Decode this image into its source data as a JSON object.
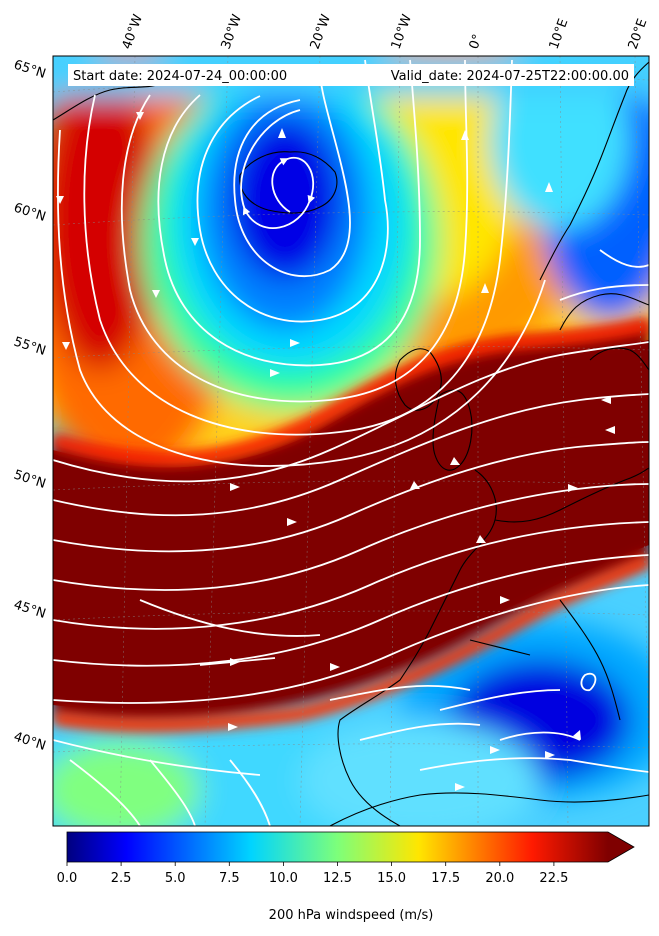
{
  "header": {
    "start_date": "Start date: 2024-07-24_00:00:00",
    "valid_date": "Valid_date: 2024-07-25T22:00:00.00"
  },
  "map": {
    "longitude_labels": [
      "40°W",
      "30°W",
      "20°W",
      "10°W",
      "0°",
      "10°E",
      "20°E"
    ],
    "latitude_labels": [
      "65°N",
      "60°N",
      "55°N",
      "50°N",
      "45°N",
      "40°N"
    ],
    "field": "200 hPa windspeed",
    "colormap": "jet",
    "streamline_color": "#ffffff",
    "coastline_color": "#000000"
  },
  "colorbar": {
    "label": "200 hPa windspeed (m/s)",
    "ticks": [
      "0.0",
      "2.5",
      "5.0",
      "7.5",
      "10.0",
      "12.5",
      "15.0",
      "17.5",
      "20.0",
      "22.5"
    ],
    "range": [
      0,
      25
    ],
    "extend": "max"
  }
}
